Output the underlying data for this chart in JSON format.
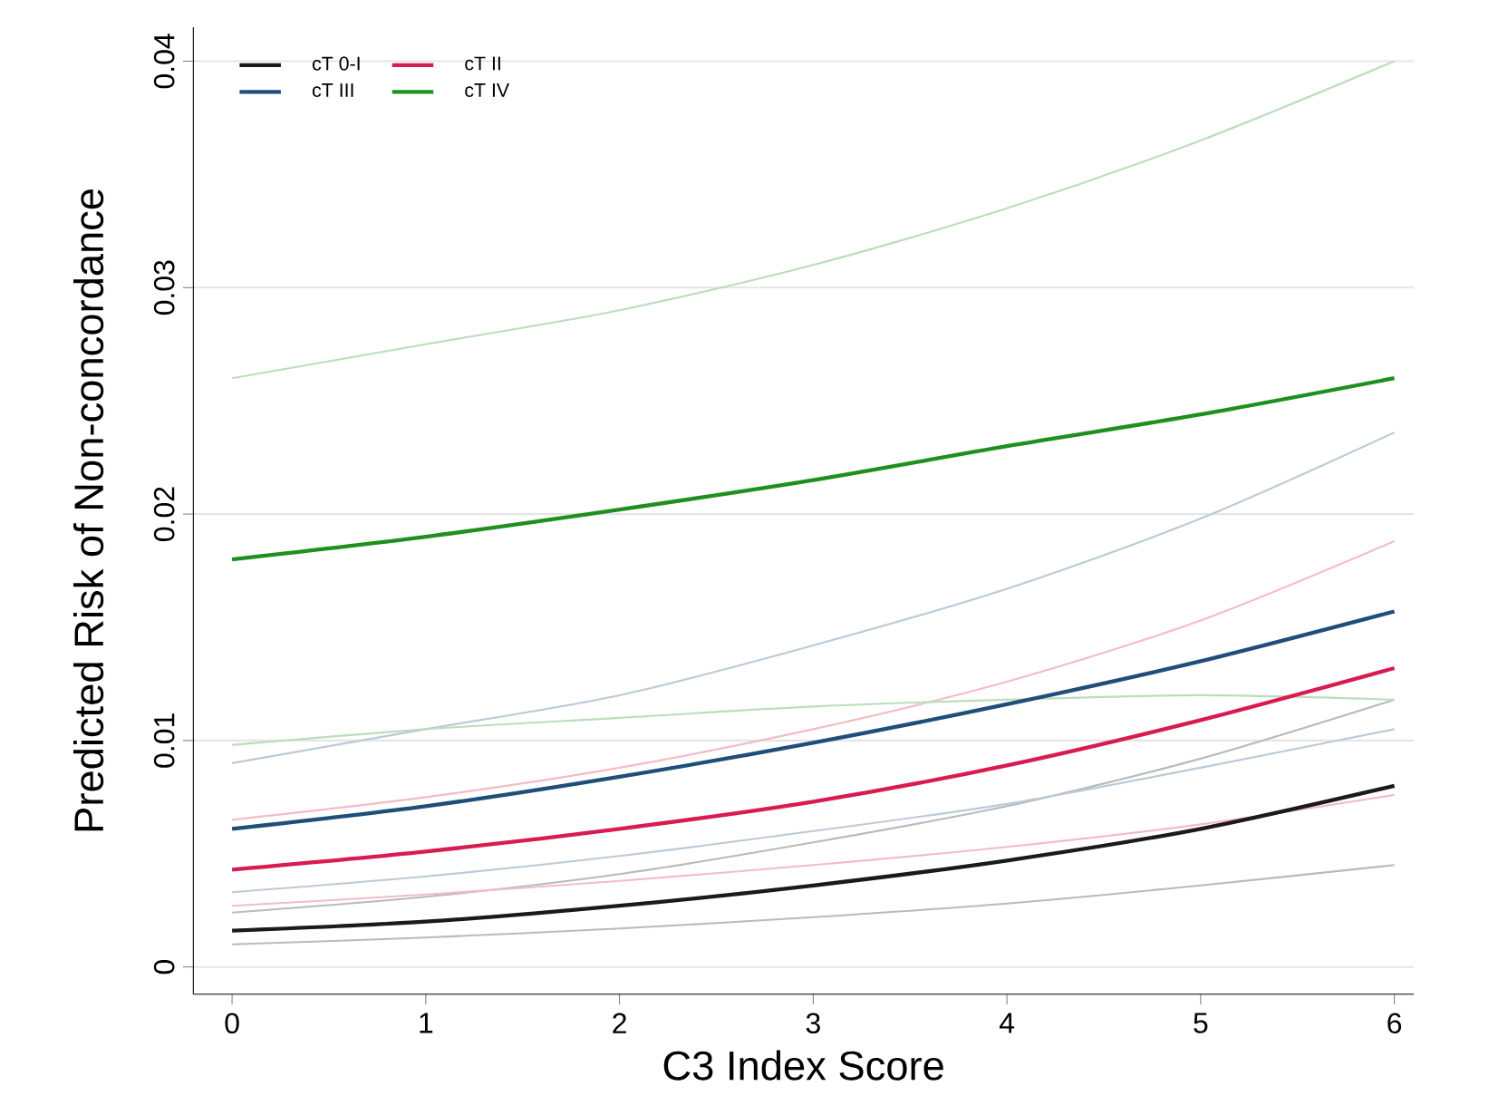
{
  "chart_data": {
    "type": "line",
    "xlabel": "C3 Index Score",
    "ylabel": "Predicted Risk of Non-concordance",
    "x": [
      0,
      1,
      2,
      3,
      4,
      5,
      6
    ],
    "series": [
      {
        "color": "#bababa",
        "values": [
          0.001,
          0.0013,
          0.0017,
          0.0022,
          0.0028,
          0.0036,
          0.0045
        ]
      },
      {
        "color": "#bababa",
        "values": [
          0.0024,
          0.0031,
          0.0041,
          0.0055,
          0.0071,
          0.0092,
          0.0118
        ]
      },
      {
        "color": "#f3bbca",
        "values": [
          0.0027,
          0.0032,
          0.0038,
          0.0045,
          0.0053,
          0.0063,
          0.0076
        ]
      },
      {
        "color": "#f3bbca",
        "values": [
          0.0065,
          0.0075,
          0.0088,
          0.0105,
          0.0126,
          0.0153,
          0.0188
        ]
      },
      {
        "color": "#bccad7",
        "values": [
          0.0033,
          0.004,
          0.0049,
          0.006,
          0.0072,
          0.0088,
          0.0105
        ]
      },
      {
        "color": "#bccad7",
        "values": [
          0.009,
          0.0105,
          0.012,
          0.0142,
          0.0167,
          0.0198,
          0.0236
        ]
      },
      {
        "color": "#bcddbc",
        "values": [
          0.0098,
          0.0105,
          0.011,
          0.0115,
          0.0118,
          0.012,
          0.0118
        ]
      },
      {
        "color": "#bcddbc",
        "values": [
          0.026,
          0.0275,
          0.029,
          0.031,
          0.0335,
          0.0365,
          0.04
        ]
      },
      {
        "name": "cT 0-I",
        "color": "#1a1a1a",
        "values": [
          0.0016,
          0.002,
          0.0027,
          0.0036,
          0.0047,
          0.0061,
          0.008
        ]
      },
      {
        "name": "cT II",
        "color": "#d81b50",
        "values": [
          0.0043,
          0.0051,
          0.0061,
          0.0073,
          0.0089,
          0.0109,
          0.0132
        ]
      },
      {
        "name": "cT III",
        "color": "#1f4e79",
        "values": [
          0.0061,
          0.0071,
          0.0084,
          0.0099,
          0.0116,
          0.0135,
          0.0157
        ]
      },
      {
        "name": "cT IV",
        "color": "#1f8f1f",
        "values": [
          0.018,
          0.019,
          0.0202,
          0.0215,
          0.023,
          0.0244,
          0.026
        ]
      }
    ],
    "xlim": [
      -0.2,
      6.1
    ],
    "ylim": [
      -0.0012,
      0.0415
    ],
    "xticks": [
      0,
      1,
      2,
      3,
      4,
      5,
      6
    ],
    "yticks": [
      0,
      0.01,
      0.02,
      0.03,
      0.04
    ],
    "grid": "y",
    "legend": "top left",
    "marker": "none",
    "line_style": "solid"
  }
}
